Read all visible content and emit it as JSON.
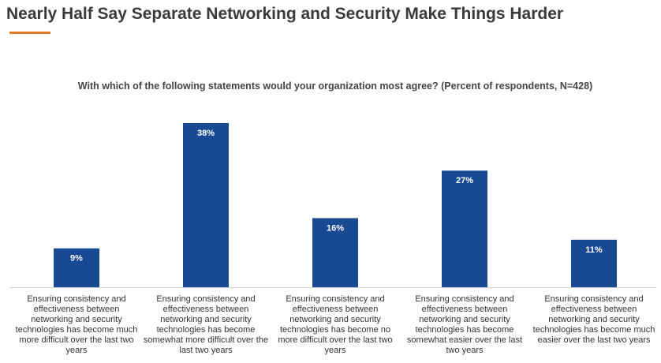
{
  "slide": {
    "title": "Nearly Half Say Separate Networking and Security Make Things Harder"
  },
  "colors": {
    "accent": "#e87722",
    "bar": "#174a93",
    "axis": "#cfcfcf",
    "title": "#3a3a3a"
  },
  "chart_data": {
    "type": "bar",
    "title": "With which of the following statements would your organization most agree? (Percent of respondents, N=428)",
    "xlabel": "",
    "ylabel": "",
    "ylim": [
      0,
      40
    ],
    "grid": false,
    "legend": "none",
    "value_suffix": "%",
    "categories": [
      "Ensuring consistency and effectiveness between networking and security technologies has become much more difficult over the last two years",
      "Ensuring consistency and effectiveness between networking and security technologies has become somewhat more difficult over the last two years",
      "Ensuring consistency and effectiveness between networking and security technologies has become no more difficult over the last two years",
      "Ensuring consistency and effectiveness between networking and security technologies has become somewhat easier over the last two years",
      "Ensuring consistency and effectiveness between networking and security technologies has become much easier over the last two years"
    ],
    "values": [
      9,
      38,
      16,
      27,
      11
    ]
  }
}
